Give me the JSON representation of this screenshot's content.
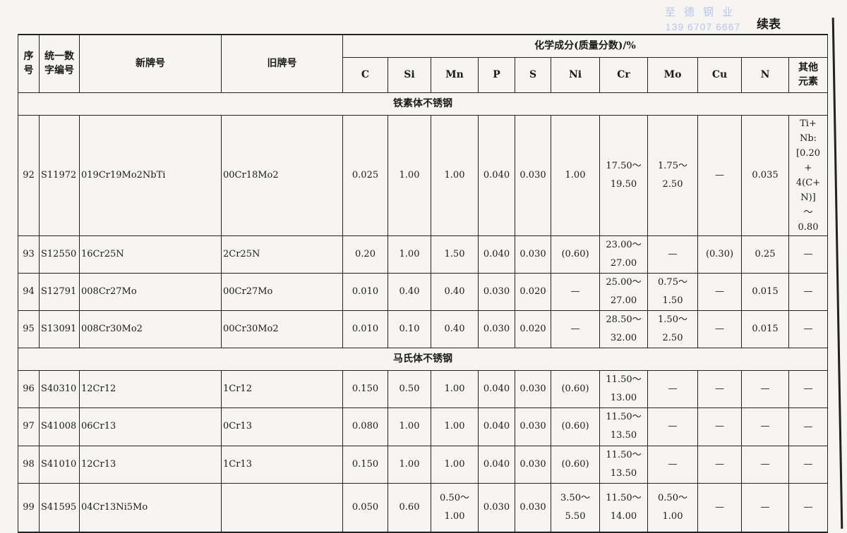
{
  "watermark": {
    "company": "至德钢业",
    "phone": "139 6707 6667"
  },
  "continued_label": "续表",
  "header": {
    "seq": "序\n号",
    "unified_code": "统一数\n字编号",
    "new_grade": "新牌号",
    "old_grade": "旧牌号",
    "composition": "化学成分(质量分数)/%",
    "elements": [
      "C",
      "Si",
      "Mn",
      "P",
      "S",
      "Ni",
      "Cr",
      "Mo",
      "Cu",
      "N",
      "其他\n元素"
    ]
  },
  "sections": [
    {
      "title": "铁素体不锈钢",
      "rows": [
        {
          "seq": "92",
          "code": "S11972",
          "new": "019Cr19Mo2NbTi",
          "old": "00Cr18Mo2",
          "vals": [
            "0.025",
            "1.00",
            "1.00",
            "0.040",
            "0.030",
            "1.00",
            "17.50～\n19.50",
            "1.75～\n2.50",
            "—",
            "0.035",
            "Ti+\nNb:\n[0.20\n+\n4(C+\nN)]\n～\n0.80"
          ]
        },
        {
          "seq": "93",
          "code": "S12550",
          "new": "16Cr25N",
          "old": "2Cr25N",
          "vals": [
            "0.20",
            "1.00",
            "1.50",
            "0.040",
            "0.030",
            "(0.60)",
            "23.00～\n27.00",
            "—",
            "(0.30)",
            "0.25",
            "—"
          ]
        },
        {
          "seq": "94",
          "code": "S12791",
          "new": "008Cr27Mo",
          "old": "00Cr27Mo",
          "vals": [
            "0.010",
            "0.40",
            "0.40",
            "0.030",
            "0.020",
            "—",
            "25.00～\n27.00",
            "0.75～\n1.50",
            "—",
            "0.015",
            "—"
          ]
        },
        {
          "seq": "95",
          "code": "S13091",
          "new": "008Cr30Mo2",
          "old": "00Cr30Mo2",
          "vals": [
            "0.010",
            "0.10",
            "0.40",
            "0.030",
            "0.020",
            "—",
            "28.50～\n32.00",
            "1.50～\n2.50",
            "—",
            "0.015",
            "—"
          ]
        }
      ]
    },
    {
      "title": "马氏体不锈钢",
      "rows": [
        {
          "seq": "96",
          "code": "S40310",
          "new": "12Cr12",
          "old": "1Cr12",
          "vals": [
            "0.150",
            "0.50",
            "1.00",
            "0.040",
            "0.030",
            "(0.60)",
            "11.50～\n13.00",
            "—",
            "—",
            "—",
            "—"
          ]
        },
        {
          "seq": "97",
          "code": "S41008",
          "new": "06Cr13",
          "old": "0Cr13",
          "vals": [
            "0.080",
            "1.00",
            "1.00",
            "0.040",
            "0.030",
            "(0.60)",
            "11.50～\n13.50",
            "—",
            "—",
            "—",
            "—"
          ]
        },
        {
          "seq": "98",
          "code": "S41010",
          "new": "12Cr13",
          "old": "1Cr13",
          "vals": [
            "0.150",
            "1.00",
            "1.00",
            "0.040",
            "0.030",
            "(0.60)",
            "11.50～\n13.50",
            "—",
            "—",
            "—",
            "—"
          ]
        },
        {
          "seq": "99",
          "code": "S41595",
          "new": "04Cr13Ni5Mo",
          "old": "",
          "vals": [
            "0.050",
            "0.60",
            "0.50～\n1.00",
            "0.030",
            "0.030",
            "3.50～\n5.50",
            "11.50～\n14.00",
            "0.50～\n1.00",
            "—",
            "—",
            "—"
          ]
        }
      ]
    }
  ]
}
